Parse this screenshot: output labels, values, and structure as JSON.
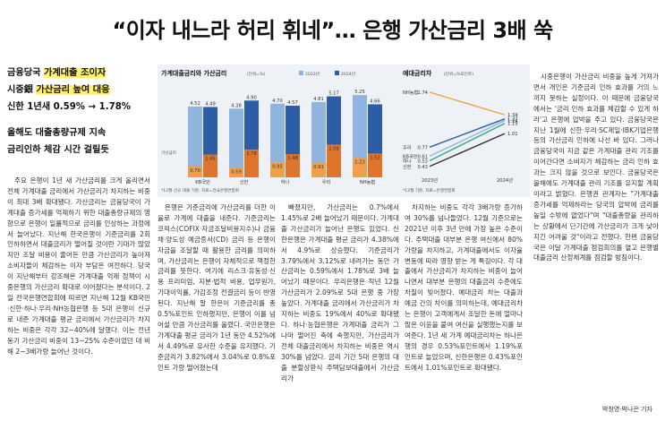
{
  "headline": "“이자 내느라 허리 휘네”… 은행 가산금리 3배 쑥",
  "subhead": {
    "line1_prefix": "금융당국 ",
    "line1_hl": "가계대출 조이자",
    "line2_prefix": "시중銀 ",
    "line2_hl": "가산금리 높여 대응",
    "line3": "신한 1년새 0.59% → 1.78%",
    "line4": "올해도 대출총량규제 지속",
    "line5": "금리인하 체감 시간 걸릴듯"
  },
  "col1": "주요 은행이 1년 새 가산금리를 크게 올리면서 전체 가계대출 금리에서 가산금리가 차지하는 비중이 최대 3배 확대됐다. 가산금리는 금융당국이 가계대출 증가세를 억제하기 위한 대출총량규제의 영향으로 은행이 일률적으로 금리를 인상하는 과정에서 늘어났다. 지난해 한국은행이 기준금리를 2회 인하하면서 대출금리가 떨어질 것이란 기대가 많았지만 조달 비용이 줄어든 만큼 가산금리가 높아져 소비자들이 체감하는 이자 부담은 여전하다. 당국이 지난해부터 강조해온 가계대출 억제 정책이 시중은행의 가산금리 확대로 이어졌다는 분석이다. 2일 전국은행연합회에 따르면 지난해 12월 KB국민·신한·하나·우리·NH농협은행 등 5대 은행이 신규로 내준 가계대출 평균 금리에서 가산금리가 차지하는 비중은 각각 32~40%에 달했다. 이는 전년 동기 가산금리 비중이 13~25% 수준이었던 데 비해 2~3배가량 늘어난 것이다.",
  "col2": "은행은 기준금리에 가산금리를 더한 이율로 가계에 대출을 내준다. 기준금리는 코픽스(COFIX·자금조달비용지수)나 금융채·양도성 예금증서(CD) 금리 등 은행이 자금을 조달할 때 활용한 금리를 의미하며, 가산금리는 은행이 자체적으로 책정한 금리를 뜻한다. 여기에 리스크·유동성·신용 프리미엄, 지분·법적 비용, 업무원가, 기대이익률, 가감조정 전결금리 등이 반영된다. 지난해 말 한은이 기준금리를 총 0.5%포인트 인하했지만, 은행이 이를 넘어설 만큼 가산금리를 올렸다. 국민은행은 가계대출 평균 금리가 1년 동안 4.52%에서 4.49%로 유사한 수준을 유지했다. 기준금리가 3.82%에서 3.04%로 0.8%포인트 가량 떨어졌는데",
  "col3": "빠졌지만, 가산금리는 0.7%에서 1.45%로 2배 늘어났기 때문이다. 가계대출 가산금리가 늘어난 은행도 있었다. 신한은행은 가계대출 평균 금리가 4.38%에서 4.9%로 상승했다. 기준금리가 3.79%에서 3.12%로 내려가는 동안 가산금리는 0.59%에서 1.78%로 3배 늘어났기 때문이다. 우리은행은 작년 12월 가산금리가 2.09%로 5대 은행 중 가장 높았다. 가계대출 금리에서 가산금리가 차지하는 비중도 19%에서 40%로 확대됐다. 하나·농협은행은 가계대출 금리가 그나마 떨어진 축에 속했지만, 가산금리가 전체 대출금리에서 차지하는 비중은 역시 30%를 넘었다. 금리 기간 5대 은행의 대출 분할상환식 주택담보대출에서 가산금리가",
  "col4": "차지하는 비중도 각각 3배가량 증가하여 30%를 넘나들었다. 12월 기준으로는 2021년 이후 3년 만에 가장 높은 수준이다. 주택대출 대부분 은행 여신에서 80% 가량을 차지하고, 가계대출에서도 이자율 변동에 따라 영향 받는 게 특징이다. 각 대출에서 가산금리가 차지하는 비중이 늘어나면서 대부분 은행의 대출금리 수준에도 차질이 빚어졌다. 예대금리 차는 대출과 예금 간의 차이를 의미하는데, 예대금리차는 은행이 고객에게서 조달한 돈에 얼마나 많은 이윤을 붙여 여신을 실행했는지를 보여준다. 1년 새 가계 예대금리차는 하나은행의 경우 0.53%포인트에서 1.19%포인트로 늘었으며, 신한은행은 0.43%포인트에서 1.01%포인트로 확대됐다.",
  "col5": "시중은행이 가산금리 비중을 높게 가져가면서 개인은 기준금리 인하 효과를 거의 느끼지 못하는 실정이다. 이 때문에 금융당국에서는 '금리 인하 효과를 체감할 수 있게 하라'고 은행에 압박을 주고 있다. 금융당국은 지난 1월에 신한·우리·SC제일·IBK기업은행 등의 가산금리 인하에 나선 바 있다. 그러나 금융당국이 지금 같은 가계대출 관리 기조를 이어간다면 소비자가 체감하는 금리 인하 효과는 크지 않을 것으로 보인다. 금융당국은 올해에도 가계대출 관리 기조를 유지할 계획이라고 밝혔다. 은행권 관계자는 \"가계대출 증가세를 억제하라는 당국의 압박에 금리를 높일 수밖에 없었다\"며 \"대출총량을 관리하는 상황에서 단기간에 가산금리가 크게 낮아지긴 어려울 것\"이라고 전했다. 한편 금융당국은 이달 가계대출 점검회의를 열고 은행별 대출금리 산정체계를 점검할 방침이다.",
  "byline": "박창영·박나은 기자",
  "chart_data": [
    {
      "type": "bar",
      "title": "가계대출금리와 가산금리",
      "unit": "(단위=%)",
      "legend": [
        "2023년",
        "2024년"
      ],
      "categories": [
        "KB국민",
        "신한",
        "하나",
        "우리",
        "NH농협"
      ],
      "series": [
        {
          "name": "2023년",
          "values": [
            4.52,
            4.38,
            4.7,
            4.81,
            5.25
          ]
        },
        {
          "name": "2024년",
          "values": [
            4.49,
            4.9,
            4.57,
            5.17,
            4.66
          ]
        }
      ],
      "spread_series": [
        {
          "name": "2023년",
          "values": [
            0.7,
            0.59,
            0.95,
            0.91,
            1.23
          ]
        },
        {
          "name": "2024년",
          "values": [
            1.45,
            1.78,
            1.48,
            2.09,
            1.52
          ]
        }
      ],
      "ylabel": "가산금리",
      "footnote": "*12월 신규 대출 기준, 자료=전국은행연합회"
    },
    {
      "type": "line",
      "title": "예대금리차",
      "unit": "(단위=%포인트)",
      "x": [
        "2023년",
        "2024년"
      ],
      "series": [
        {
          "name": "NH농협",
          "values": [
            1.74,
            1.34
          ]
        },
        {
          "name": "우리",
          "values": [
            0.77,
            1.27
          ]
        },
        {
          "name": "KB국민",
          "values": [
            0.61,
            1.24
          ]
        },
        {
          "name": "하나",
          "values": [
            0.53,
            1.19
          ]
        },
        {
          "name": "신한",
          "values": [
            0.43,
            1.01
          ]
        }
      ],
      "footnote": "*12월 기준, 자료=은행연합회"
    }
  ],
  "colors": {
    "bar_2023": "#8fb4de",
    "bar_2024": "#2c5ea8",
    "spread_2023": "#f0a04b",
    "spread_2024": "#e0742a",
    "line_nh": "#f0a04b",
    "line_woori": "#2c5ea8",
    "line_kb": "#8fb4de",
    "line_hana": "#3aa68a",
    "line_shinhan": "#333333",
    "highlight": "#fff36a"
  }
}
